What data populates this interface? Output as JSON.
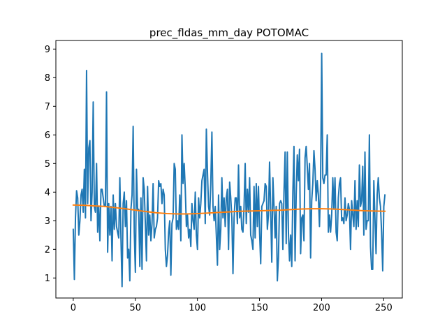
{
  "chart_data": {
    "type": "line",
    "title": "prec_fldas_mm_day POTOMAC",
    "xlabel": "",
    "ylabel": "",
    "xlim": [
      -14,
      265
    ],
    "ylim": [
      0.3,
      9.3
    ],
    "x_ticks": [
      0,
      50,
      100,
      150,
      200,
      250
    ],
    "y_ticks": [
      1,
      2,
      3,
      4,
      5,
      6,
      7,
      8,
      9
    ],
    "grid": false,
    "legend": "none",
    "series": [
      {
        "color": "#1f77b4",
        "values": [
          2.7,
          0.95,
          3.1,
          4.05,
          3.8,
          2.5,
          3.0,
          3.9,
          4.1,
          3.3,
          4.8,
          3.1,
          8.25,
          3.6,
          5.55,
          5.8,
          3.0,
          4.0,
          7.15,
          3.5,
          3.3,
          5.0,
          2.6,
          3.5,
          2.3,
          4.1,
          4.1,
          3.8,
          3.5,
          3.5,
          7.5,
          1.9,
          3.6,
          2.5,
          3.5,
          1.6,
          3.9,
          2.7,
          3.6,
          2.8,
          2.6,
          2.4,
          4.5,
          2.4,
          0.7,
          3.6,
          4.0,
          2.8,
          3.7,
          1.7,
          2.0,
          0.9,
          3.4,
          3.9,
          6.3,
          2.6,
          1.2,
          4.8,
          3.4,
          3.4,
          1.4,
          3.8,
          1.3,
          4.5,
          4.1,
          2.9,
          1.6,
          4.2,
          2.5,
          3.2,
          2.3,
          2.9,
          4.3,
          2.4,
          2.7,
          2.8,
          3.1,
          4.4,
          4.2,
          4.3,
          3.6,
          4.1,
          3.9,
          2.0,
          1.4,
          1.8,
          2.6,
          3.0,
          1.1,
          2.9,
          3.1,
          5.0,
          4.8,
          2.7,
          3.0,
          2.7,
          3.9,
          2.3,
          6.0,
          4.3,
          5.0,
          4.1,
          2.8,
          3.2,
          2.4,
          2.7,
          2.1,
          3.6,
          3.0,
          2.7,
          4.0,
          2.5,
          2.0,
          3.8,
          3.1,
          3.6,
          4.4,
          4.6,
          4.8,
          2.9,
          6.2,
          4.7,
          3.5,
          3.2,
          4.3,
          6.1,
          3.5,
          3.0,
          3.5,
          2.5,
          1.45,
          3.9,
          2.0,
          2.7,
          4.5,
          3.1,
          3.8,
          2.8,
          3.8,
          4.1,
          2.0,
          4.35,
          3.8,
          3.1,
          1.15,
          3.1,
          3.8,
          3.8,
          2.9,
          4.95,
          3.1,
          3.5,
          2.7,
          2.6,
          3.5,
          5.0,
          2.9,
          4.1,
          3.3,
          4.5,
          2.5,
          2.3,
          2.0,
          4.2,
          2.4,
          4.3,
          2.8,
          4.2,
          2.6,
          1.5,
          3.5,
          3.6,
          3.7,
          4.3,
          4.2,
          2.7,
          3.2,
          5.05,
          3.35,
          1.55,
          4.5,
          3.5,
          2.4,
          3.5,
          0.9,
          1.7,
          3.6,
          3.7,
          3.6,
          2.0,
          4.0,
          5.4,
          2.2,
          5.4,
          2.6,
          1.6,
          2.5,
          1.4,
          4.0,
          5.6,
          1.6,
          3.9,
          5.3,
          4.4,
          5.5,
          1.85,
          3.1,
          3.2,
          2.3,
          5.2,
          5.6,
          4.9,
          4.1,
          5.0,
          1.7,
          3.7,
          4.3,
          5.45,
          4.8,
          3.7,
          4.4,
          3.9,
          2.8,
          4.3,
          8.85,
          4.5,
          4.3,
          4.6,
          4.6,
          6.0,
          2.6,
          3.2,
          2.6,
          3.2,
          4.5,
          3.4,
          4.5,
          2.6,
          2.3,
          3.8,
          4.3,
          4.5,
          3.0,
          3.1,
          2.9,
          3.8,
          3.0,
          3.2,
          3.6,
          3.4,
          2.0,
          3.7,
          3.2,
          2.8,
          4.4,
          2.7,
          3.7,
          2.8,
          4.95,
          3.5,
          3.7,
          4.9,
          2.5,
          5.4,
          2.7,
          3.0,
          3.0,
          6.0,
          2.1,
          1.3,
          1.3,
          4.4,
          3.1,
          1.85,
          3.9,
          4.5,
          3.8,
          3.5,
          2.6,
          1.25,
          3.5,
          3.9
        ]
      },
      {
        "color": "#ff7f0e",
        "values": [
          3.55,
          3.54,
          3.52,
          3.5,
          3.46,
          3.42,
          3.37,
          3.32,
          3.28,
          3.25,
          3.24,
          3.24,
          3.25,
          3.27,
          3.29,
          3.31,
          3.33,
          3.34,
          3.35,
          3.36,
          3.37,
          3.39,
          3.41,
          3.42,
          3.42,
          3.41,
          3.39,
          3.37,
          3.35,
          3.34,
          3.33
        ]
      }
    ]
  }
}
